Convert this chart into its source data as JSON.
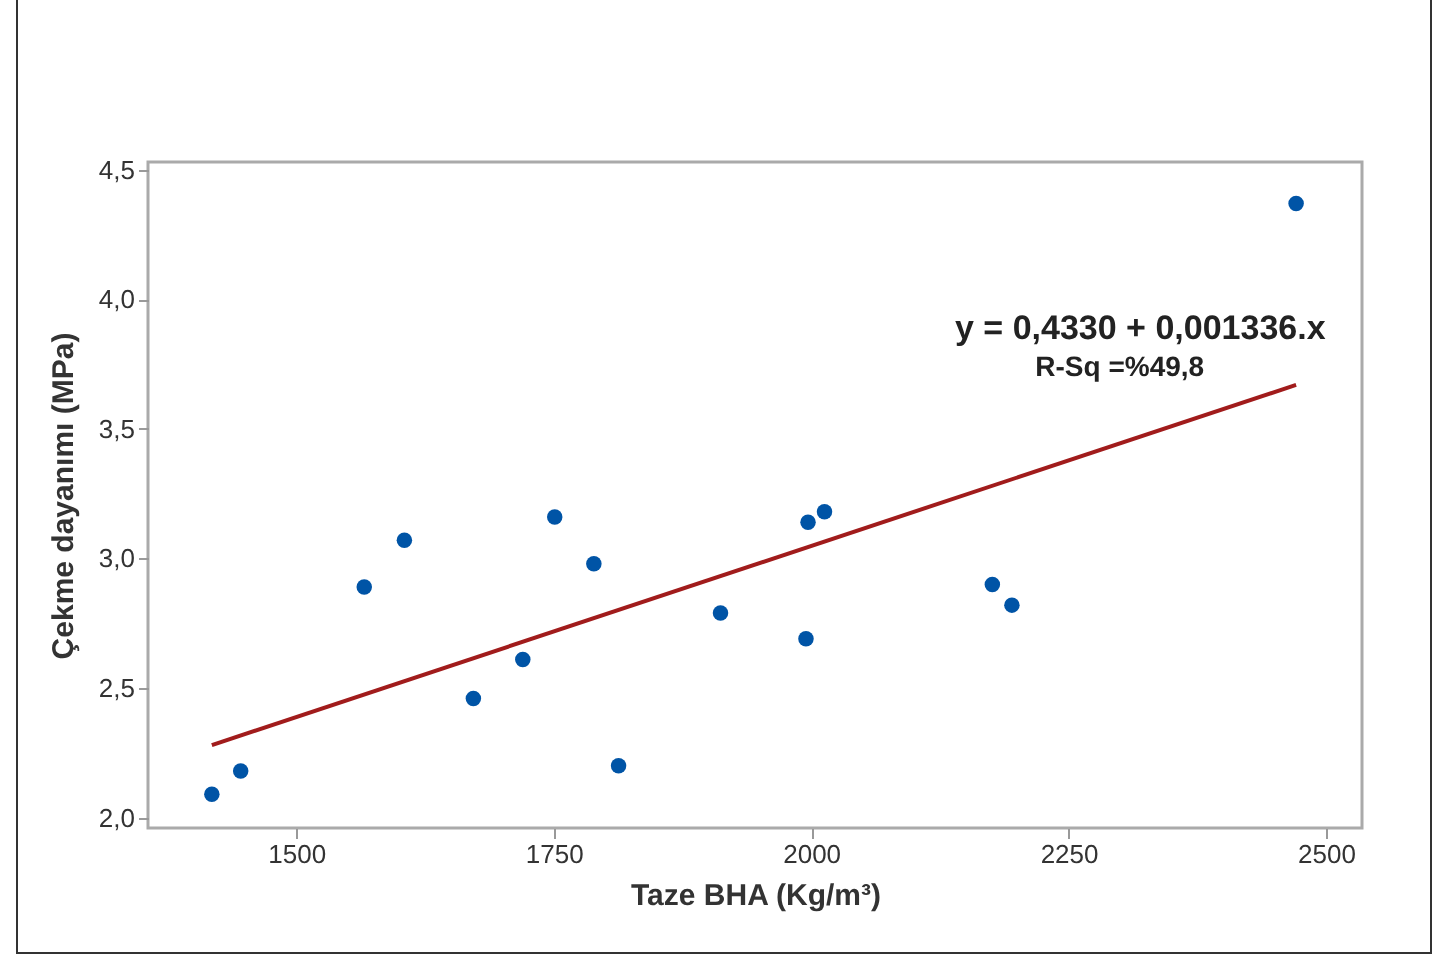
{
  "chart_data": {
    "type": "scatter",
    "xlabel": "Taze BHA (Kg/m³)",
    "ylabel": "Çekme dayanımı (MPa)",
    "series": [
      {
        "marker": "circle",
        "color": "#0054a6",
        "x": [
          1418,
          1446,
          1566,
          1605,
          1672,
          1720,
          1751,
          1789,
          1813,
          1912,
          1995,
          1997,
          2013,
          2176,
          2195,
          2471
        ],
        "values": [
          2.09,
          2.18,
          2.89,
          3.07,
          2.46,
          2.61,
          3.16,
          2.98,
          2.2,
          2.79,
          2.69,
          3.14,
          3.18,
          2.9,
          2.82,
          4.37
        ]
      },
      {
        "type": "line",
        "color": "#a11c1c",
        "x": [
          1418,
          2471
        ],
        "values": [
          2.28,
          3.67
        ]
      }
    ],
    "xlim": [
      1356,
      2535
    ],
    "ylim": [
      1.96,
      4.53
    ],
    "xticks": [
      1500,
      1750,
      2000,
      2250,
      2500
    ],
    "yticks": [
      {
        "value": 2,
        "label": "2,0"
      },
      {
        "value": 2.5,
        "label": "2,5"
      },
      {
        "value": 3,
        "label": "3,0"
      },
      {
        "value": 3.5,
        "label": "3,5"
      },
      {
        "value": 4,
        "label": "4,0"
      },
      {
        "value": 4.5,
        "label": "4,5"
      }
    ],
    "grid": false,
    "annotations": [
      "y = 0,4330 + 0,001336.x",
      "R-Sq =%49,8"
    ]
  }
}
